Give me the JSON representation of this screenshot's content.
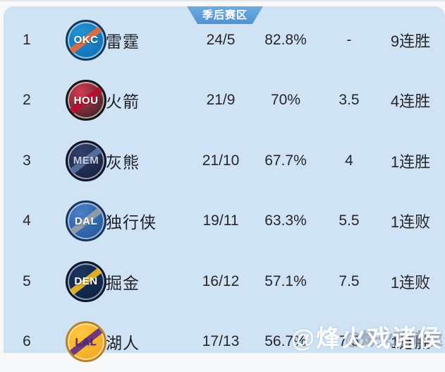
{
  "theme": {
    "panel_bg": "#cfe3f5",
    "badge_bg": "#4f93d4",
    "text_color": "#26262b",
    "badge_text_color": "#ffffff"
  },
  "badge": {
    "label": "季后赛区"
  },
  "watermark": {
    "text": "@烽火戏诸侯",
    "ghost_text": "@烽火戏诸侯"
  },
  "table": {
    "rows": [
      {
        "rank": "1",
        "team": "雷霆",
        "record": "24/5",
        "win_pct": "82.8%",
        "games_behind": "-",
        "streak": "9连胜",
        "logo": {
          "abbr": "OKC",
          "bg1": "#2490d2",
          "bg2": "#0d6cb0",
          "ring": "#12395f",
          "text_color": "#ffffff",
          "accent": "#f26c32"
        }
      },
      {
        "rank": "2",
        "team": "火箭",
        "record": "21/9",
        "win_pct": "70%",
        "games_behind": "3.5",
        "streak": "4连胜",
        "logo": {
          "abbr": "HOU",
          "bg1": "#d33a52",
          "bg2": "#1f1f1f",
          "ring": "#161616",
          "text_color": "#ffffff",
          "accent": "#ba0c2f"
        }
      },
      {
        "rank": "3",
        "team": "灰熊",
        "record": "21/10",
        "win_pct": "67.7%",
        "games_behind": "4",
        "streak": "1连胜",
        "logo": {
          "abbr": "MEM",
          "bg1": "#32406b",
          "bg2": "#121a38",
          "ring": "#0c1229",
          "text_color": "#c5cfdd",
          "accent": "#5d76a9"
        }
      },
      {
        "rank": "4",
        "team": "独行侠",
        "record": "19/11",
        "win_pct": "63.3%",
        "games_behind": "5.5",
        "streak": "1连败",
        "logo": {
          "abbr": "DAL",
          "bg1": "#4b80c8",
          "bg2": "#1d4f91",
          "ring": "#16355f",
          "text_color": "#ffffff",
          "accent": "#9ea3a8"
        }
      },
      {
        "rank": "5",
        "team": "掘金",
        "record": "16/12",
        "win_pct": "57.1%",
        "games_behind": "7.5",
        "streak": "1连败",
        "logo": {
          "abbr": "DEN",
          "bg1": "#1b355f",
          "bg2": "#0b1d3c",
          "ring": "#091730",
          "text_color": "#ffffff",
          "accent": "#fec524"
        }
      },
      {
        "rank": "6",
        "team": "湖人",
        "record": "17/13",
        "win_pct": "56.7%",
        "games_behind": "7.5",
        "streak": "1连胜",
        "logo": {
          "abbr": "LAL",
          "bg1": "#ffc93f",
          "bg2": "#f09f1e",
          "ring": "#b9832c",
          "text_color": "#552583",
          "accent": "#552583"
        }
      }
    ]
  }
}
